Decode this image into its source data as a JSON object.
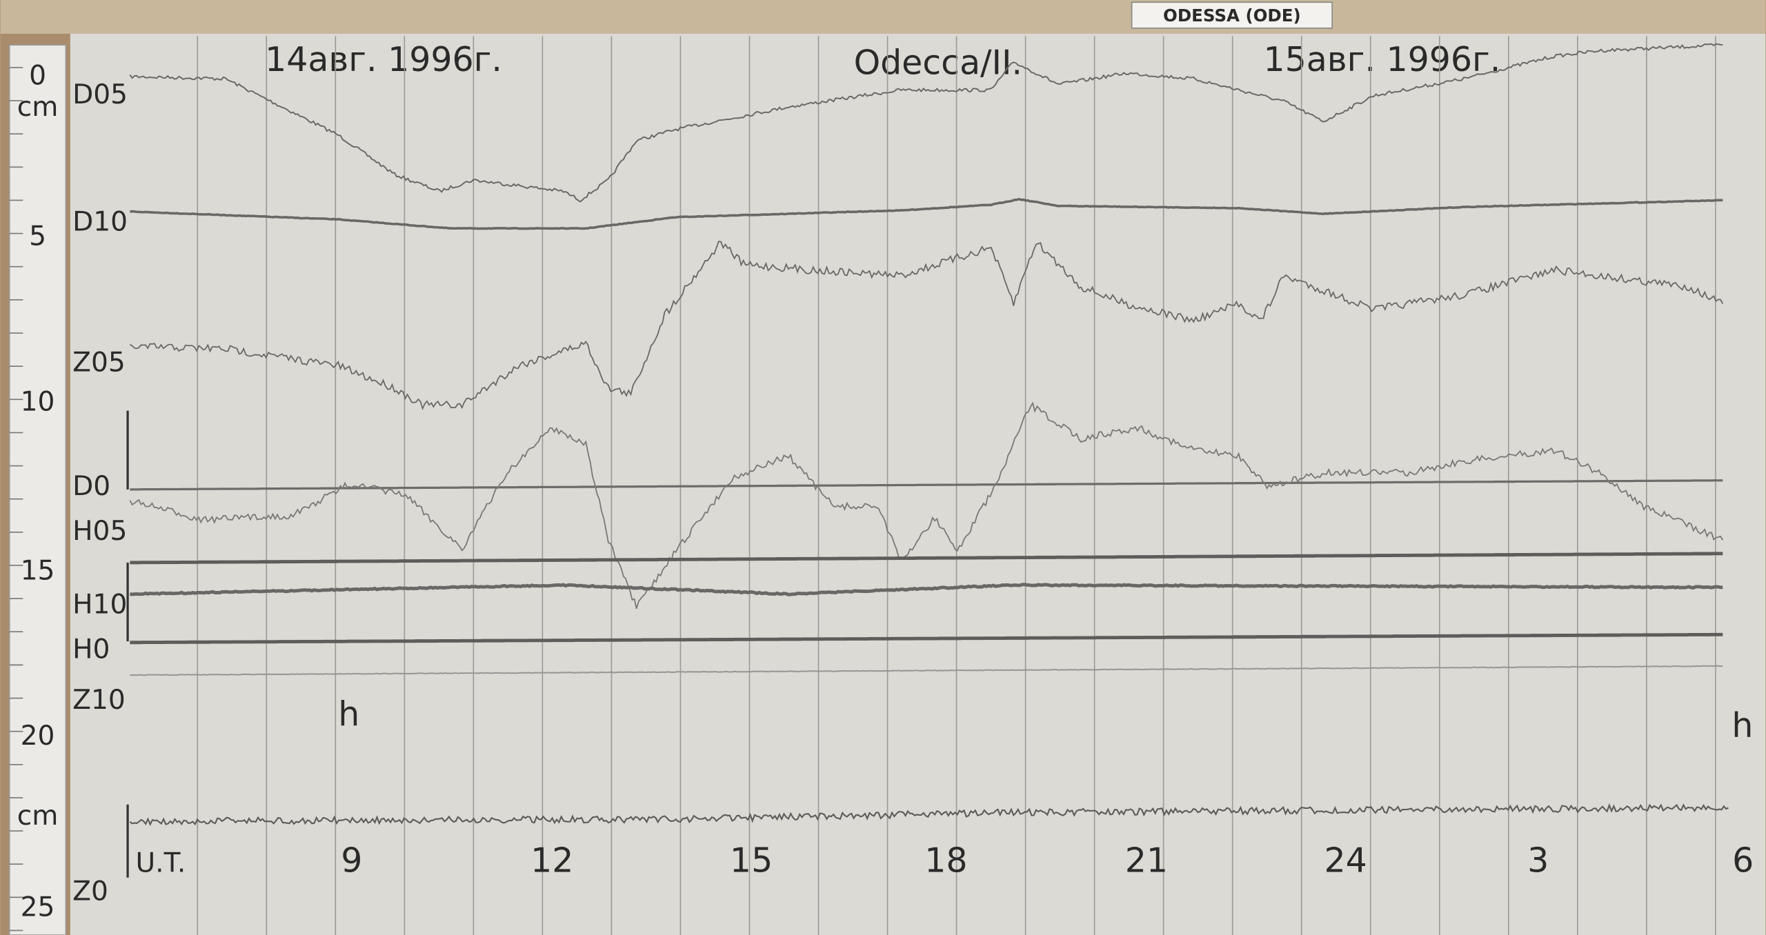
{
  "header": {
    "station": "ODESSA (ODE)",
    "date_left": "14авг. 1996г.",
    "title": "Odecca/II.",
    "date_right": "15авг. 1996г."
  },
  "ruler": {
    "labels": [
      "0",
      "cm",
      "5",
      "10",
      "15",
      "20",
      "cm",
      "25"
    ]
  },
  "traces": {
    "labels": [
      "D05",
      "D10",
      "Z05",
      "D0",
      "H05",
      "H10",
      "H0",
      "Z10",
      "Z0"
    ]
  },
  "time_axis": {
    "label": "U.T.",
    "hours": [
      "9",
      "12",
      "15",
      "18",
      "21",
      "24",
      "3",
      "6"
    ],
    "marker": "h"
  }
}
